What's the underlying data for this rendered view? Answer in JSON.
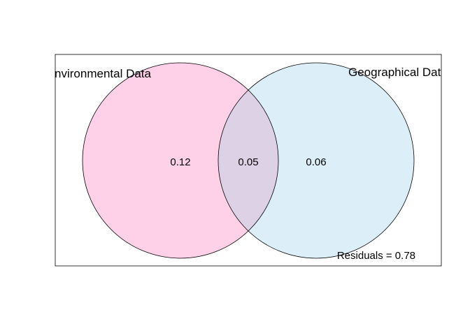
{
  "sets": [
    {
      "name": "Environmental Data",
      "color": "#ffd1e8"
    },
    {
      "name": "Geographical Data",
      "color": "#dceef8"
    }
  ],
  "overlap_color": "#ddd1e6",
  "values": {
    "environmental_only": "0.12",
    "shared": "0.05",
    "geographical_only": "0.06"
  },
  "residuals_label": "Residuals = 0.78"
}
